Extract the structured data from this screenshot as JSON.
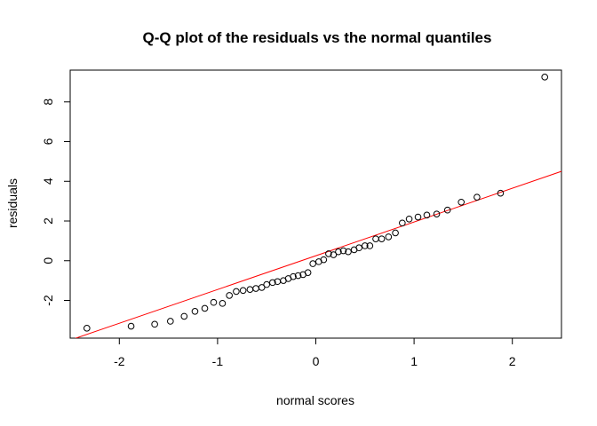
{
  "chart_data": {
    "type": "scatter",
    "title": "Q-Q plot of the residuals vs the normal quantiles",
    "xlabel": "normal scores",
    "ylabel": "residuals",
    "xlim": [
      -2.5,
      2.5
    ],
    "ylim": [
      -3.9,
      9.6
    ],
    "x_ticks": [
      -2,
      -1,
      0,
      1,
      2
    ],
    "x_tick_labels": [
      "-2",
      "-1",
      "0",
      "1",
      "2"
    ],
    "y_ticks": [
      -2,
      0,
      2,
      4,
      6,
      8
    ],
    "y_tick_labels": [
      "-2",
      "0",
      "2",
      "4",
      "6",
      "8"
    ],
    "grid": false,
    "legend": "none",
    "point_color": "#000000",
    "line_color": "#ff0000",
    "points": [
      [
        -2.33,
        -3.4
      ],
      [
        -1.88,
        -3.3
      ],
      [
        -1.64,
        -3.2
      ],
      [
        -1.48,
        -3.05
      ],
      [
        -1.34,
        -2.8
      ],
      [
        -1.23,
        -2.55
      ],
      [
        -1.13,
        -2.4
      ],
      [
        -1.04,
        -2.1
      ],
      [
        -0.95,
        -2.15
      ],
      [
        -0.88,
        -1.75
      ],
      [
        -0.81,
        -1.55
      ],
      [
        -0.74,
        -1.5
      ],
      [
        -0.67,
        -1.45
      ],
      [
        -0.61,
        -1.4
      ],
      [
        -0.55,
        -1.35
      ],
      [
        -0.5,
        -1.2
      ],
      [
        -0.44,
        -1.1
      ],
      [
        -0.39,
        -1.05
      ],
      [
        -0.33,
        -1.0
      ],
      [
        -0.28,
        -0.9
      ],
      [
        -0.23,
        -0.8
      ],
      [
        -0.18,
        -0.75
      ],
      [
        -0.13,
        -0.7
      ],
      [
        -0.08,
        -0.6
      ],
      [
        -0.03,
        -0.15
      ],
      [
        0.03,
        -0.05
      ],
      [
        0.08,
        0.05
      ],
      [
        0.13,
        0.35
      ],
      [
        0.18,
        0.3
      ],
      [
        0.23,
        0.45
      ],
      [
        0.28,
        0.5
      ],
      [
        0.33,
        0.45
      ],
      [
        0.39,
        0.55
      ],
      [
        0.44,
        0.65
      ],
      [
        0.5,
        0.75
      ],
      [
        0.55,
        0.75
      ],
      [
        0.61,
        1.1
      ],
      [
        0.67,
        1.1
      ],
      [
        0.74,
        1.2
      ],
      [
        0.81,
        1.4
      ],
      [
        0.88,
        1.9
      ],
      [
        0.95,
        2.1
      ],
      [
        1.04,
        2.2
      ],
      [
        1.13,
        2.3
      ],
      [
        1.23,
        2.35
      ],
      [
        1.34,
        2.55
      ],
      [
        1.48,
        2.95
      ],
      [
        1.64,
        3.2
      ],
      [
        1.88,
        3.4
      ],
      [
        2.33,
        9.25
      ]
    ],
    "reference_line": {
      "intercept": 0.25,
      "slope": 1.7
    }
  }
}
